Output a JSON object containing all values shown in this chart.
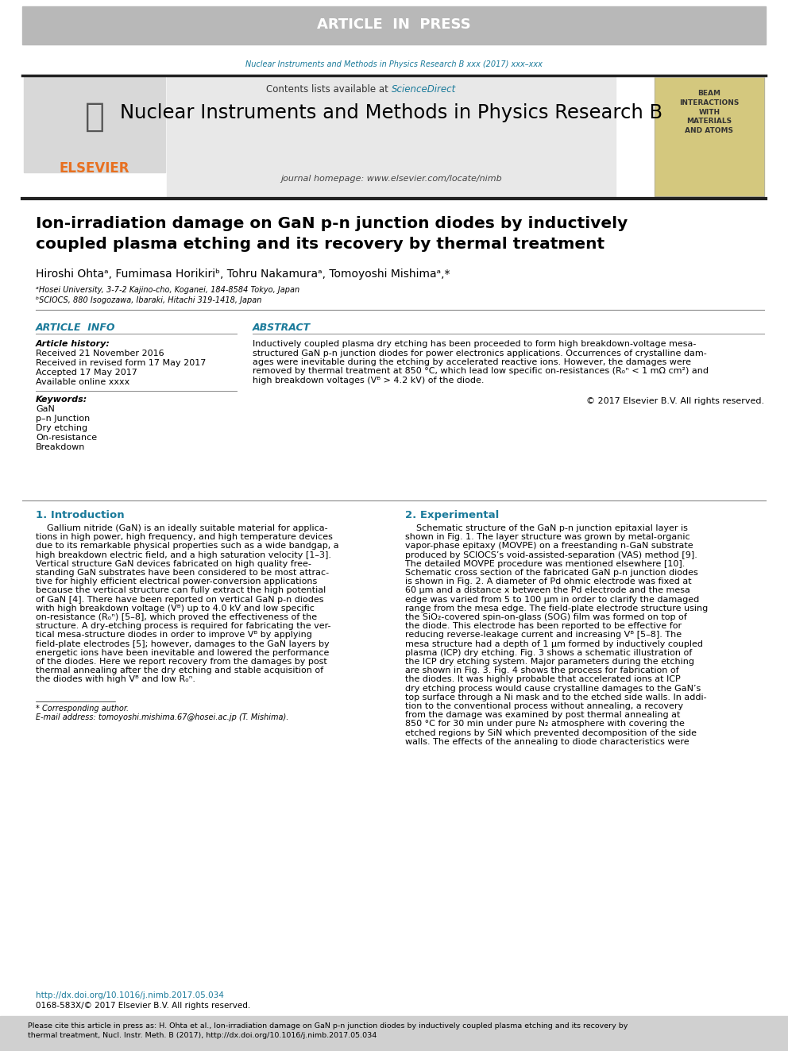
{
  "article_in_press_bg": "#b8b8b8",
  "article_in_press_text": "ARTICLE  IN  PRESS",
  "journal_citation": "Nuclear Instruments and Methods in Physics Research B xxx (2017) xxx–xxx",
  "journal_citation_color": "#1a7a9a",
  "header_bg": "#e8e8e8",
  "contents_text": "Contents lists available at ",
  "sciencedirect_text": "ScienceDirect",
  "sciencedirect_color": "#1a7a9a",
  "journal_title": "Nuclear Instruments and Methods in Physics Research B",
  "journal_homepage": "journal homepage: www.elsevier.com/locate/nimb",
  "elsevier_color": "#e87020",
  "paper_title_line1": "Ion-irradiation damage on GaN p-n junction diodes by inductively",
  "paper_title_line2": "coupled plasma etching and its recovery by thermal treatment",
  "authors_full": "Hiroshi Ohtaᵃ, Fumimasa Horikiriᵇ, Tohru Nakamuraᵃ, Tomoyoshi Mishimaᵃ,*",
  "affil_a": "ᵃHosei University, 3-7-2 Kajino-cho, Koganei, 184-8584 Tokyo, Japan",
  "affil_b": "ᵇSCIOCS, 880 Isogozawa, Ibaraki, Hitachi 319-1418, Japan",
  "article_info_title": "ARTICLE  INFO",
  "abstract_title": "ABSTRACT",
  "article_history_title": "Article history:",
  "received": "Received 21 November 2016",
  "revised": "Received in revised form 17 May 2017",
  "accepted": "Accepted 17 May 2017",
  "available": "Available online xxxx",
  "keywords_title": "Keywords:",
  "keywords": [
    "GaN",
    "p–n Junction",
    "Dry etching",
    "On-resistance",
    "Breakdown"
  ],
  "copyright": "© 2017 Elsevier B.V. All rights reserved.",
  "section1_title": "1. Introduction",
  "section2_title": "2. Experimental",
  "corresponding_note": "* Corresponding author.",
  "email_note": "E-mail address: tomoyoshi.mishima.67@hosei.ac.jp (T. Mishima).",
  "doi_text": "http://dx.doi.org/10.1016/j.nimb.2017.05.034",
  "issn_text": "0168-583X/© 2017 Elsevier B.V. All rights reserved.",
  "footer_bg": "#d0d0d0",
  "section_color": "#1a7a9a",
  "book_color": "#d4c87e",
  "sep_color": "#888888",
  "thick_sep_color": "#222222",
  "abstract_lines": [
    "Inductively coupled plasma dry etching has been proceeded to form high breakdown-voltage mesa-",
    "structured GaN p-n junction diodes for power electronics applications. Occurrences of crystalline dam-",
    "ages were inevitable during the etching by accelerated reactive ions. However, the damages were",
    "removed by thermal treatment at 850 °C, which lead low specific on-resistances (Rₒⁿ < 1 mΩ cm²) and",
    "high breakdown voltages (Vᴮ > 4.2 kV) of the diode."
  ],
  "intro_lines": [
    "    Gallium nitride (GaN) is an ideally suitable material for applica-",
    "tions in high power, high frequency, and high temperature devices",
    "due to its remarkable physical properties such as a wide bandgap, a",
    "high breakdown electric field, and a high saturation velocity [1–3].",
    "Vertical structure GaN devices fabricated on high quality free-",
    "standing GaN substrates have been considered to be most attrac-",
    "tive for highly efficient electrical power-conversion applications",
    "because the vertical structure can fully extract the high potential",
    "of GaN [4]. There have been reported on vertical GaN p-n diodes",
    "with high breakdown voltage (Vᴮ) up to 4.0 kV and low specific",
    "on-resistance (Rₒⁿ) [5–8], which proved the effectiveness of the",
    "structure. A dry-etching process is required for fabricating the ver-",
    "tical mesa-structure diodes in order to improve Vᴮ by applying",
    "field-plate electrodes [5]; however, damages to the GaN layers by",
    "energetic ions have been inevitable and lowered the performance",
    "of the diodes. Here we report recovery from the damages by post",
    "thermal annealing after the dry etching and stable acquisition of",
    "the diodes with high Vᴮ and low Rₒⁿ."
  ],
  "exp_lines": [
    "    Schematic structure of the GaN p-n junction epitaxial layer is",
    "shown in Fig. 1. The layer structure was grown by metal-organic",
    "vapor-phase epitaxy (MOVPE) on a freestanding n-GaN substrate",
    "produced by SCIOCS’s void-assisted-separation (VAS) method [9].",
    "The detailed MOVPE procedure was mentioned elsewhere [10].",
    "Schematic cross section of the fabricated GaN p-n junction diodes",
    "is shown in Fig. 2. A diameter of Pd ohmic electrode was fixed at",
    "60 μm and a distance x between the Pd electrode and the mesa",
    "edge was varied from 5 to 100 μm in order to clarify the damaged",
    "range from the mesa edge. The field-plate electrode structure using",
    "the SiO₂-covered spin-on-glass (SOG) film was formed on top of",
    "the diode. This electrode has been reported to be effective for",
    "reducing reverse-leakage current and increasing Vᴮ [5–8]. The",
    "mesa structure had a depth of 1 μm formed by inductively coupled",
    "plasma (ICP) dry etching. Fig. 3 shows a schematic illustration of",
    "the ICP dry etching system. Major parameters during the etching",
    "are shown in Fig. 3. Fig. 4 shows the process for fabrication of",
    "the diodes. It was highly probable that accelerated ions at ICP",
    "dry etching process would cause crystalline damages to the GaN’s",
    "top surface through a Ni mask and to the etched side walls. In addi-",
    "tion to the conventional process without annealing, a recovery",
    "from the damage was examined by post thermal annealing at",
    "850 °C for 30 min under pure N₂ atmosphere with covering the",
    "etched regions by SiN which prevented decomposition of the side",
    "walls. The effects of the annealing to diode characteristics were"
  ],
  "footer_line1": "Please cite this article in press as: H. Ohta et al., Ion-irradiation damage on GaN p-n junction diodes by inductively coupled plasma etching and its recovery by",
  "footer_line2": "thermal treatment, Nucl. Instr. Meth. B (2017), http://dx.doi.org/10.1016/j.nimb.2017.05.034"
}
